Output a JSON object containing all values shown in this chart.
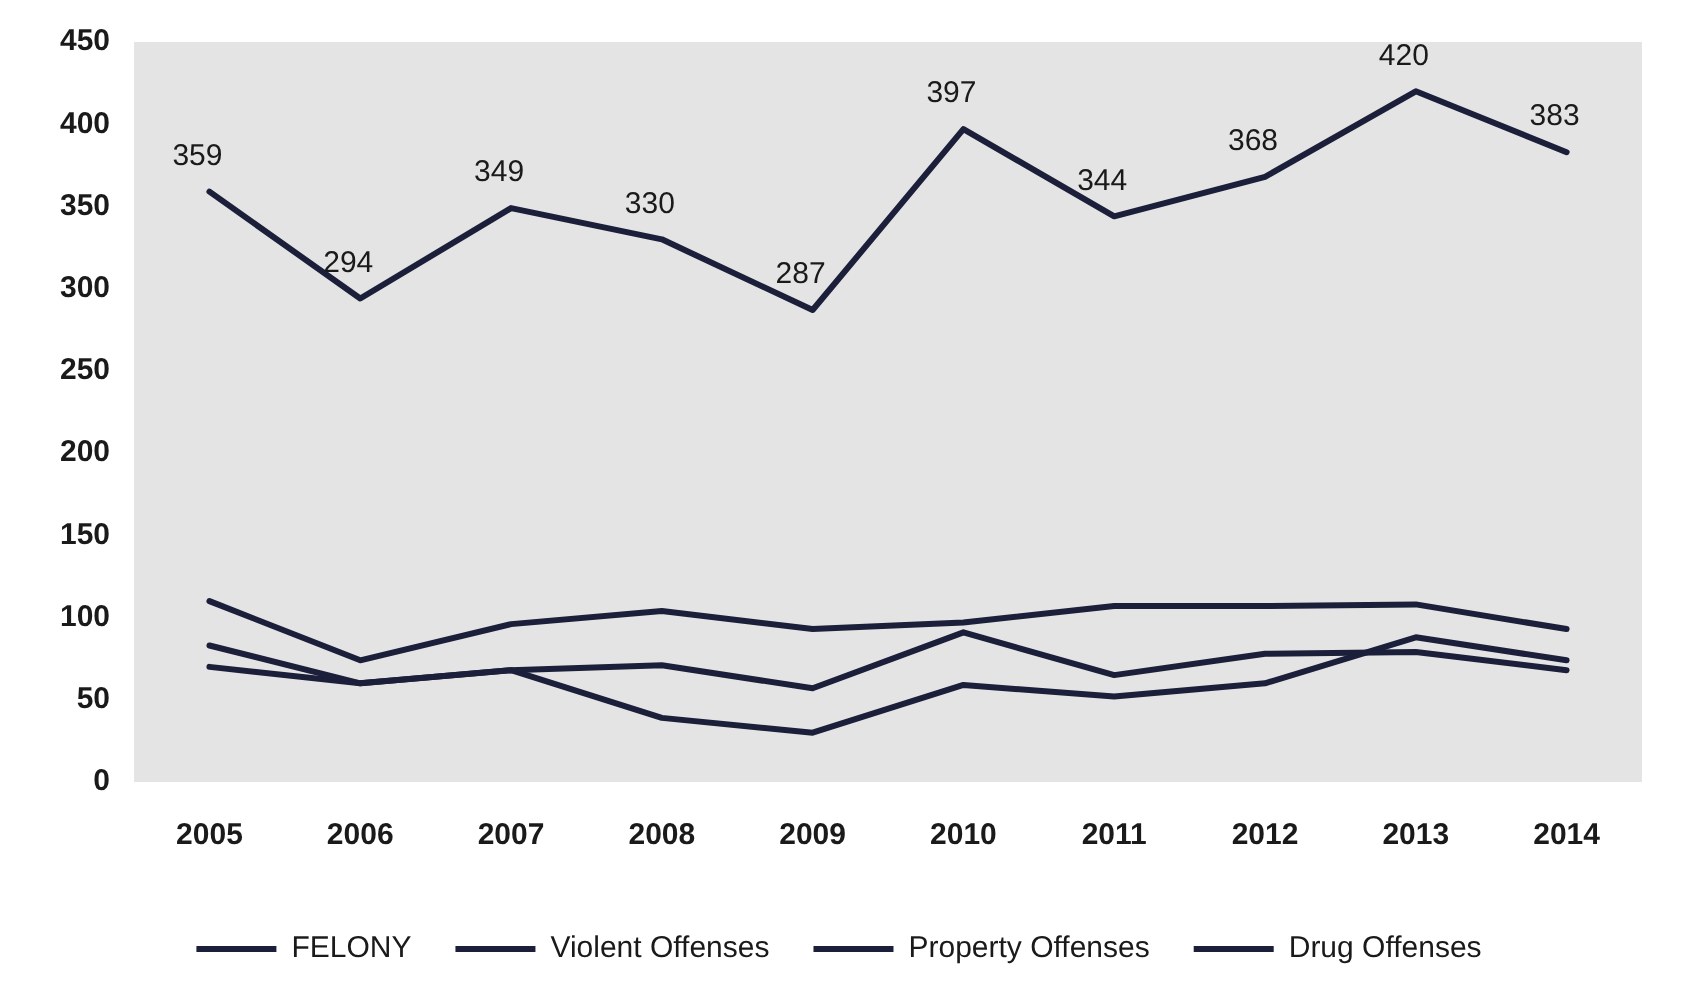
{
  "chart_data": {
    "type": "line",
    "categories": [
      "2005",
      "2006",
      "2007",
      "2008",
      "2009",
      "2010",
      "2011",
      "2012",
      "2013",
      "2014"
    ],
    "series": [
      {
        "name": "FELONY",
        "color": "#1c1f3a",
        "values": [
          359,
          294,
          349,
          330,
          287,
          397,
          344,
          368,
          420,
          383
        ],
        "value_labels": [
          "359",
          "294",
          "349",
          "330",
          "287",
          "397",
          "344",
          "368",
          "420",
          "383"
        ]
      },
      {
        "name": "Violent Offenses",
        "color": "#1c1f3a",
        "values": [
          110,
          74,
          96,
          104,
          93,
          97,
          107,
          107,
          108,
          93
        ]
      },
      {
        "name": "Property Offenses",
        "color": "#1c1f3a",
        "values": [
          83,
          60,
          68,
          71,
          57,
          91,
          65,
          78,
          79,
          68
        ]
      },
      {
        "name": "Drug Offenses",
        "color": "#1c1f3a",
        "values": [
          70,
          60,
          68,
          39,
          30,
          59,
          52,
          60,
          88,
          74
        ]
      }
    ],
    "ylim": [
      0,
      450
    ],
    "yticks": [
      0,
      50,
      100,
      150,
      200,
      250,
      300,
      350,
      400,
      450
    ],
    "grid": false,
    "legend": "bottom",
    "marker": "none",
    "line_style": "solid"
  }
}
